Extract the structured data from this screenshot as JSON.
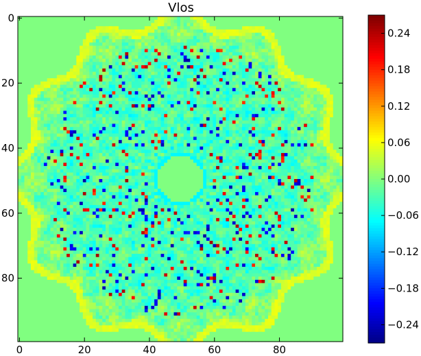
{
  "chart_data": {
    "type": "heatmap",
    "title": "Vlos",
    "xlabel": "",
    "ylabel": "",
    "image_size": 100,
    "xlim": [
      0,
      100
    ],
    "ylim": [
      100,
      0
    ],
    "x_ticks": [
      0,
      20,
      40,
      60,
      80
    ],
    "x_tick_labels": [
      "0",
      "20",
      "40",
      "60",
      "80"
    ],
    "y_ticks": [
      0,
      20,
      40,
      60,
      80
    ],
    "y_tick_labels": [
      "0",
      "20",
      "40",
      "60",
      "80"
    ],
    "colormap": "jet",
    "value_range": [
      -0.27,
      0.27
    ],
    "colorbar_ticks": [
      0.24,
      0.18,
      0.12,
      0.06,
      0.0,
      -0.06,
      -0.12,
      -0.18,
      -0.24
    ],
    "colorbar_tick_labels": [
      "0.24",
      "0.18",
      "0.12",
      "0.06",
      "0.00",
      "−0.06",
      "−0.12",
      "−0.18",
      "−0.24"
    ],
    "background_value": 0.0,
    "pattern": {
      "center": [
        49.5,
        49.5
      ],
      "inner_disk_radius": 7,
      "inner_ring_radius": 8.2,
      "outer_radius": 49.5,
      "spiral_arms": 12,
      "description_value_ring": -0.09
    },
    "colors": {
      "jet_dark_blue": "#00007f",
      "jet_mid_green": "#7dff7a",
      "jet_dark_red": "#7f0000",
      "axis": "#000000"
    }
  }
}
